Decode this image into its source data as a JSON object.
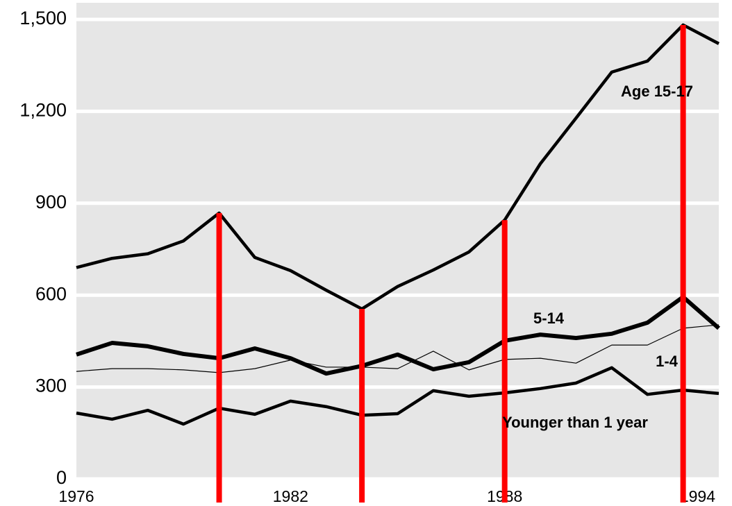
{
  "chart_data": {
    "type": "line",
    "x": [
      1976,
      1977,
      1978,
      1979,
      1980,
      1981,
      1982,
      1983,
      1984,
      1985,
      1986,
      1987,
      1988,
      1989,
      1990,
      1991,
      1992,
      1993,
      1994
    ],
    "series": [
      {
        "name": "Age 15-17",
        "color": "#000000",
        "width": 4.5,
        "values": [
          690,
          720,
          735,
          777,
          868,
          723,
          680,
          616,
          555,
          628,
          682,
          741,
          845,
          1029,
          1178,
          1328,
          1364,
          1482,
          1421
        ]
      },
      {
        "name": "5-14",
        "color": "#000000",
        "width": 6,
        "values": [
          406,
          444,
          433,
          408,
          394,
          426,
          394,
          344,
          369,
          406,
          358,
          381,
          451,
          471,
          460,
          474,
          510,
          594,
          492
        ]
      },
      {
        "name": "1-4",
        "color": "#000000",
        "width": 1.2,
        "values": [
          351,
          360,
          360,
          356,
          347,
          360,
          388,
          365,
          365,
          360,
          417,
          356,
          390,
          394,
          378,
          437,
          437,
          492,
          503
        ]
      },
      {
        "name": "Younger than 1 year",
        "color": "#000000",
        "width": 4.5,
        "values": [
          215,
          195,
          224,
          179,
          231,
          211,
          254,
          236,
          208,
          213,
          288,
          270,
          281,
          295,
          313,
          363,
          276,
          290,
          279
        ]
      }
    ],
    "markers": {
      "color": "#ff0000",
      "x": [
        1980,
        1984,
        1988,
        1993
      ],
      "values": [
        868,
        555,
        845,
        1482
      ]
    },
    "xlim": [
      1976,
      1994
    ],
    "xticks": [
      1976,
      1982,
      1988,
      1994
    ],
    "ylim": [
      0,
      1500
    ],
    "yticks": [
      0,
      300,
      600,
      900,
      {
        "value": 1200,
        "label": "1,200"
      },
      {
        "value": 1500,
        "label": "1,500"
      }
    ],
    "grid": true
  }
}
